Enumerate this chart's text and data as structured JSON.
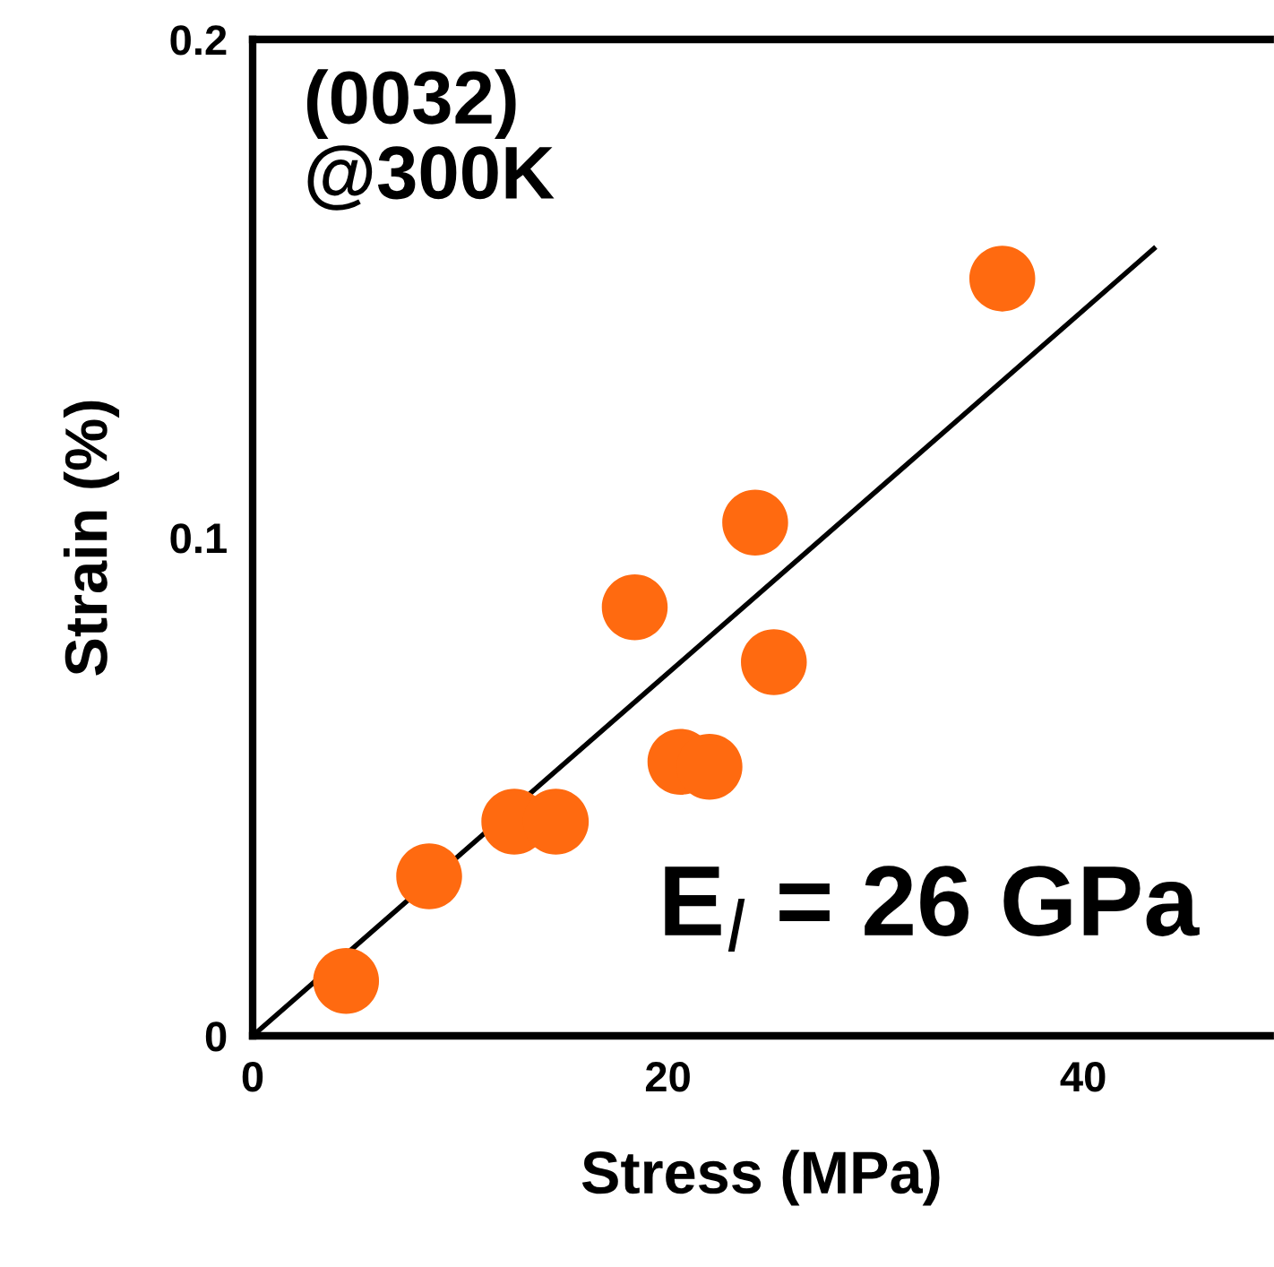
{
  "chart_data": {
    "type": "scatter",
    "xlabel": "Stress (MPa)",
    "ylabel": "Strain (%)",
    "xlim": [
      0,
      49
    ],
    "ylim": [
      0,
      0.2
    ],
    "xticks": [
      0,
      20,
      40
    ],
    "yticks": [
      0,
      0.1,
      0.2
    ],
    "grid": false,
    "marker": "circle",
    "annotations": [
      "(0032)\n@300K",
      "E$_{l}$ = 26 GPa"
    ],
    "series": [
      {
        "color": "#ff6a10",
        "x": [
          4.5,
          8.5,
          12.6,
          14.6,
          20.6,
          22.0,
          18.4,
          24.2,
          25.1,
          36.1
        ],
        "values": [
          0.011,
          0.032,
          0.043,
          0.043,
          0.055,
          0.054,
          0.086,
          0.103,
          0.075,
          0.152
        ]
      },
      {
        "type": "line",
        "color": "#000000",
        "x": [
          0,
          43.4
        ],
        "values": [
          0,
          0.158
        ],
        "marker": "none",
        "line_style": "solid"
      }
    ]
  }
}
